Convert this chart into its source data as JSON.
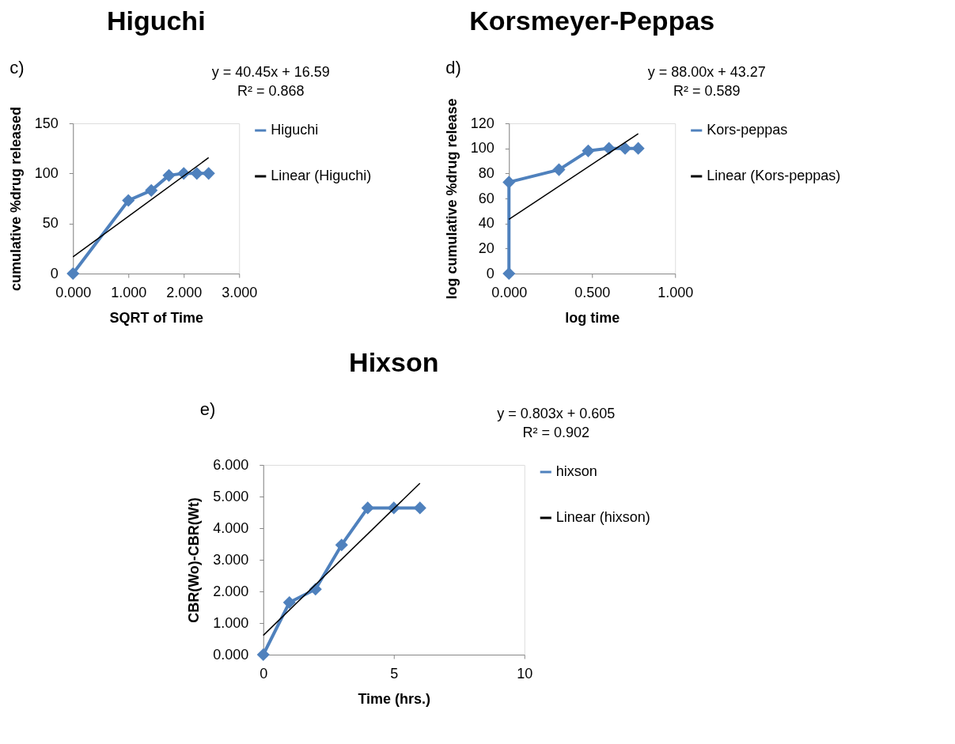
{
  "chart_data": [
    {
      "type": "line",
      "title": "Higuchi",
      "xlabel": "SQRT of Time",
      "ylabel": "cumulative %drug released",
      "annotations": [
        "c)",
        "y = 40.45x + 16.59",
        "R² = 0.868"
      ],
      "xlim": [
        0,
        3
      ],
      "xticks": [
        {
          "value": 0,
          "label": "0.000"
        },
        {
          "value": 1,
          "label": "1.000"
        },
        {
          "value": 2,
          "label": "2.000"
        },
        {
          "value": 3,
          "label": "3.000"
        }
      ],
      "ylim": [
        0,
        150
      ],
      "yticks": [
        0,
        50,
        100,
        150
      ],
      "legend": "right",
      "line_style": "solid",
      "series": [
        {
          "name": "Higuchi",
          "color": "#4f81bd",
          "marker": "diamond",
          "x": [
            0,
            1,
            1.414,
            1.732,
            2,
            2.236,
            2.449
          ],
          "values": [
            0,
            73,
            83,
            98,
            100,
            100,
            100
          ]
        },
        {
          "name": "Linear (Higuchi)",
          "color": "#000000",
          "marker": "none",
          "x": [
            0,
            2.449
          ],
          "values": [
            16.6,
            115.7
          ]
        }
      ]
    },
    {
      "type": "line",
      "title": "Korsmeyer-Peppas",
      "xlabel": "log time",
      "ylabel": "log cumulative %drug release",
      "annotations": [
        "d)",
        "y = 88.00x + 43.27",
        "R² = 0.589"
      ],
      "xlim": [
        0,
        1
      ],
      "xticks": [
        {
          "value": 0,
          "label": "0.000"
        },
        {
          "value": 0.5,
          "label": "0.500"
        },
        {
          "value": 1,
          "label": "1.000"
        }
      ],
      "ylim": [
        0,
        120
      ],
      "yticks": [
        0,
        20,
        40,
        60,
        80,
        100,
        120
      ],
      "legend": "right",
      "line_style": "solid",
      "series": [
        {
          "name": "Kors-peppas",
          "color": "#4f81bd",
          "marker": "diamond",
          "x": [
            0,
            0,
            0.301,
            0.477,
            0.602,
            0.699,
            0.778
          ],
          "values": [
            0,
            73,
            83,
            98,
            100,
            100,
            100
          ]
        },
        {
          "name": "Linear (Kors-peppas)",
          "color": "#000000",
          "marker": "none",
          "x": [
            0,
            0.778
          ],
          "values": [
            43.3,
            111.7
          ]
        }
      ]
    },
    {
      "type": "line",
      "title": "Hixson",
      "xlabel": "Time (hrs.)",
      "ylabel": "CBR(Wo)-CBR(Wt)",
      "annotations": [
        "e)",
        "y = 0.803x + 0.605",
        "R² = 0.902"
      ],
      "xlim": [
        0,
        10
      ],
      "xticks": [
        0,
        5,
        10
      ],
      "ylim": [
        0,
        6
      ],
      "yticks": [
        {
          "value": 0,
          "label": "0.000"
        },
        {
          "value": 1,
          "label": "1.000"
        },
        {
          "value": 2,
          "label": "2.000"
        },
        {
          "value": 3,
          "label": "3.000"
        },
        {
          "value": 4,
          "label": "4.000"
        },
        {
          "value": 5,
          "label": "5.000"
        },
        {
          "value": 6,
          "label": "6.000"
        }
      ],
      "legend": "right",
      "line_style": "solid",
      "series": [
        {
          "name": "hixson",
          "color": "#4f81bd",
          "marker": "diamond",
          "x": [
            0,
            1,
            2,
            3,
            4,
            5,
            6
          ],
          "values": [
            0,
            1.65,
            2.07,
            3.47,
            4.64,
            4.64,
            4.64
          ]
        },
        {
          "name": "Linear (hixson)",
          "color": "#000000",
          "marker": "none",
          "x": [
            0,
            6
          ],
          "values": [
            0.61,
            5.42
          ]
        }
      ]
    }
  ]
}
